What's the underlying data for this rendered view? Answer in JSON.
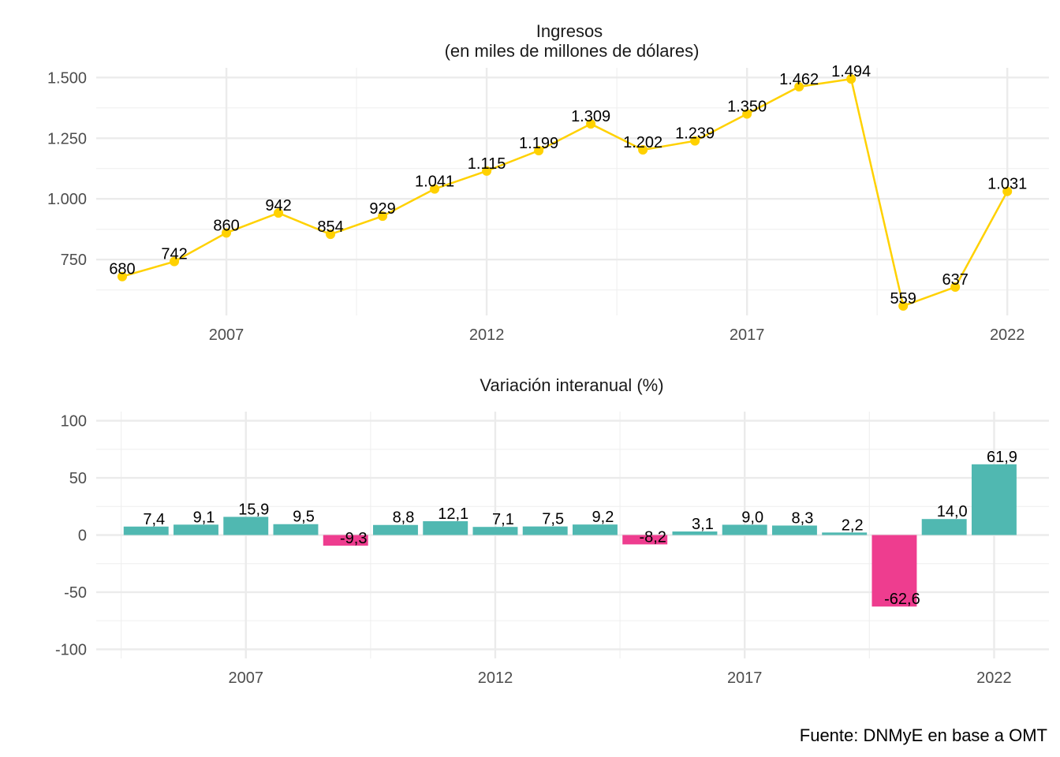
{
  "chart_data": [
    {
      "type": "line",
      "title": "Ingresos",
      "subtitle": "(en miles de millones de dólares)",
      "x": [
        2005,
        2006,
        2007,
        2008,
        2009,
        2010,
        2011,
        2012,
        2013,
        2014,
        2015,
        2016,
        2017,
        2018,
        2019,
        2020,
        2021,
        2022
      ],
      "values": [
        680,
        742,
        860,
        942,
        854,
        929,
        1041,
        1115,
        1199,
        1309,
        1202,
        1239,
        1350,
        1462,
        1494,
        559,
        637,
        1031
      ],
      "labels": [
        "680",
        "742",
        "860",
        "942",
        "854",
        "929",
        "1.041",
        "1.115",
        "1.199",
        "1.309",
        "1.202",
        "1.239",
        "1.350",
        "1.462",
        "1.494",
        "559",
        "637",
        "1.031"
      ],
      "yticks": [
        750,
        1000,
        1250,
        1500
      ],
      "ytick_labels": [
        "750",
        "1.000",
        "1.250",
        "1.500"
      ],
      "xticks": [
        2007,
        2012,
        2017,
        2022
      ],
      "xtick_labels": [
        "2007",
        "2012",
        "2017",
        "2022"
      ],
      "ylim": [
        520,
        1540
      ],
      "xlim": [
        2004.5,
        2022.8
      ],
      "color": "#FFD100",
      "grid": true
    },
    {
      "type": "bar",
      "title": "Variación interanual (%)",
      "x": [
        2005,
        2006,
        2007,
        2008,
        2009,
        2010,
        2011,
        2012,
        2013,
        2014,
        2015,
        2016,
        2017,
        2018,
        2019,
        2020,
        2021,
        2022
      ],
      "values": [
        7.4,
        9.1,
        15.9,
        9.5,
        -9.3,
        8.8,
        12.1,
        7.1,
        7.5,
        9.2,
        -8.2,
        3.1,
        9.0,
        8.3,
        2.2,
        -62.6,
        14.0,
        61.9
      ],
      "labels": [
        "7,4",
        "9,1",
        "15,9",
        "9,5",
        "-9,3",
        "8,8",
        "12,1",
        "7,1",
        "7,5",
        "9,2",
        "-8,2",
        "3,1",
        "9,0",
        "8,3",
        "2,2",
        "-62,6",
        "14,0",
        "61,9"
      ],
      "yticks": [
        -100,
        -50,
        0,
        50,
        100
      ],
      "ytick_labels": [
        "-100",
        "-50",
        "0",
        "50",
        "100"
      ],
      "xticks": [
        2007,
        2012,
        2017,
        2022
      ],
      "xtick_labels": [
        "2007",
        "2012",
        "2017",
        "2022"
      ],
      "ylim": [
        -108,
        108
      ],
      "xlim": [
        2004.0,
        2023.1
      ],
      "positive_color": "#50B8B1",
      "negative_color": "#EE3D8F",
      "grid": true
    }
  ],
  "caption": "Fuente: DNMyE en base a OMT"
}
